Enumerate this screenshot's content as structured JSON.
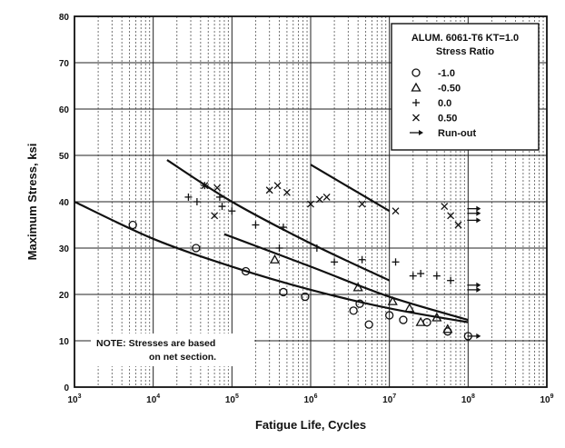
{
  "chart_data": {
    "type": "scatter",
    "xlabel": "Fatigue Life, Cycles",
    "ylabel": "Maximum Stress, ksi",
    "xscale": "log",
    "xlim": [
      1000,
      1000000000
    ],
    "ylim": [
      0,
      80
    ],
    "x_ticks": [
      {
        "value": 1000,
        "base": "10",
        "exp": "3"
      },
      {
        "value": 10000,
        "base": "10",
        "exp": "4"
      },
      {
        "value": 100000,
        "base": "10",
        "exp": "5"
      },
      {
        "value": 1000000,
        "base": "10",
        "exp": "6"
      },
      {
        "value": 10000000,
        "base": "10",
        "exp": "7"
      },
      {
        "value": 100000000,
        "base": "10",
        "exp": "8"
      },
      {
        "value": 1000000000,
        "base": "10",
        "exp": "9"
      }
    ],
    "y_ticks": [
      0,
      10,
      20,
      30,
      40,
      50,
      60,
      70,
      80
    ],
    "grid": true,
    "legend": {
      "placement": "top-right",
      "title": "ALUM. 6061-T6 KT=1.0",
      "subtitle": "Stress Ratio",
      "entries": [
        {
          "marker": "circle",
          "label": "-1.0"
        },
        {
          "marker": "triangle",
          "label": "-0.50"
        },
        {
          "marker": "plus",
          "label": "0.0"
        },
        {
          "marker": "cross",
          "label": "0.50"
        },
        {
          "marker": "arrow",
          "label": "Run-out"
        }
      ]
    },
    "annotation": {
      "line1": "NOTE: Stresses are based",
      "line2": "on net section."
    },
    "series": [
      {
        "marker": "circle",
        "points": [
          [
            5500,
            35
          ],
          [
            35000,
            30
          ],
          [
            150000,
            25
          ],
          [
            450000,
            20.5
          ],
          [
            850000,
            19.5
          ],
          [
            3500000,
            16.5
          ],
          [
            4200000,
            18
          ],
          [
            5500000,
            13.5
          ],
          [
            10000000,
            15.5
          ],
          [
            15000000,
            14.5
          ],
          [
            30000000,
            14
          ],
          [
            55000000,
            12
          ],
          [
            100000000,
            11
          ]
        ],
        "runouts": [
          [
            100000000,
            11
          ]
        ]
      },
      {
        "marker": "triangle",
        "points": [
          [
            350000,
            27.5
          ],
          [
            4000000,
            21.5
          ],
          [
            11000000,
            18.5
          ],
          [
            18000000,
            17
          ],
          [
            25000000,
            14
          ],
          [
            40000000,
            15
          ],
          [
            55000000,
            12.5
          ]
        ],
        "runouts": []
      },
      {
        "marker": "plus",
        "points": [
          [
            28000,
            41
          ],
          [
            36000,
            40
          ],
          [
            45000,
            43.5
          ],
          [
            70000,
            41
          ],
          [
            75000,
            39
          ],
          [
            100000,
            38
          ],
          [
            200000,
            35
          ],
          [
            400000,
            30
          ],
          [
            450000,
            34.5
          ],
          [
            1200000,
            30
          ],
          [
            2000000,
            27
          ],
          [
            4500000,
            27.5
          ],
          [
            12000000,
            27
          ],
          [
            20000000,
            24
          ],
          [
            25000000,
            24.5
          ],
          [
            40000000,
            24
          ],
          [
            60000000,
            23
          ]
        ],
        "runouts": []
      },
      {
        "marker": "cross",
        "points": [
          [
            45000,
            43.5
          ],
          [
            60000,
            37
          ],
          [
            65000,
            43
          ],
          [
            300000,
            42.5
          ],
          [
            380000,
            43.5
          ],
          [
            500000,
            42
          ],
          [
            1000000,
            39.5
          ],
          [
            1300000,
            40.5
          ],
          [
            1600000,
            41
          ],
          [
            4500000,
            39.5
          ],
          [
            12000000,
            38
          ],
          [
            50000000,
            39
          ],
          [
            60000000,
            37
          ],
          [
            75000000,
            35
          ]
        ],
        "runouts": [
          [
            100000000,
            38.5
          ],
          [
            100000000,
            37.5
          ],
          [
            100000000,
            36
          ],
          [
            100000000,
            22
          ],
          [
            100000000,
            21
          ]
        ]
      }
    ],
    "fit_curves": [
      {
        "points": [
          [
            1000,
            40
          ],
          [
            10000,
            32
          ],
          [
            100000,
            26
          ],
          [
            1000000,
            21
          ],
          [
            10000000,
            17
          ],
          [
            100000000,
            14
          ]
        ]
      },
      {
        "points": [
          [
            15000,
            49
          ],
          [
            100000,
            40
          ],
          [
            1000000,
            31
          ],
          [
            10000000,
            23
          ]
        ]
      },
      {
        "points": [
          [
            80000,
            33
          ],
          [
            1000000,
            26
          ],
          [
            10000000,
            19.5
          ],
          [
            100000000,
            14.5
          ]
        ]
      },
      {
        "points": [
          [
            1000000,
            48
          ],
          [
            10000000,
            38
          ]
        ]
      }
    ]
  }
}
